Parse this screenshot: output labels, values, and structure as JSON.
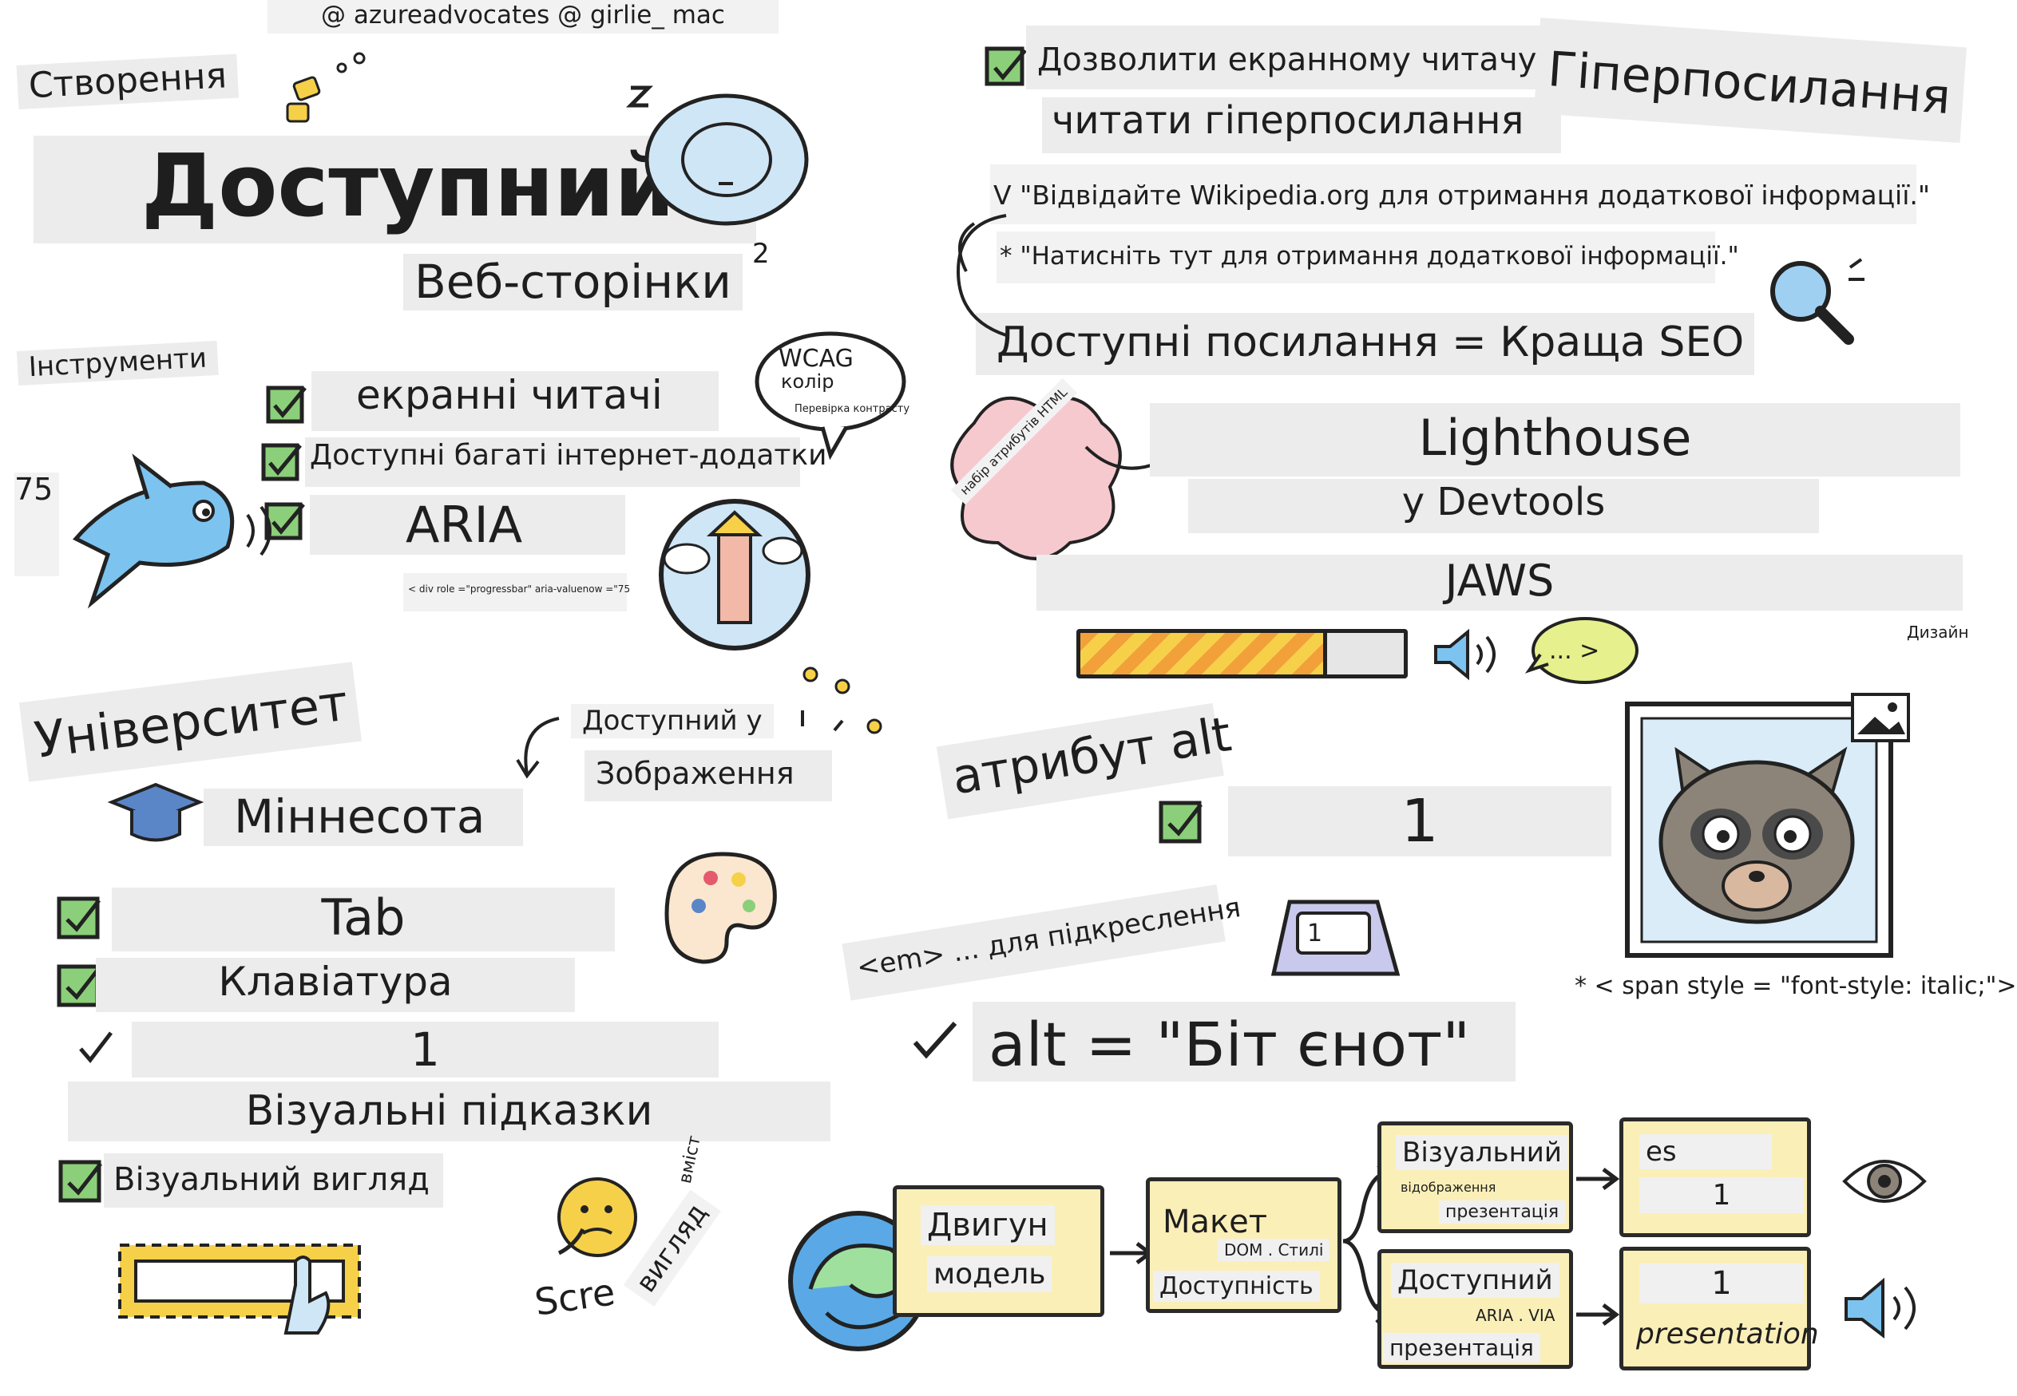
{
  "credit": "@ azureadvocates @ girlie_ mac",
  "title": {
    "line1": "Створення",
    "line2": "Доступний",
    "line3": "Веб-сторінки"
  },
  "page_number": "2",
  "tools": {
    "heading": "Інструменти",
    "items": [
      "екранні читачі",
      "Доступні багаті інтернет-додатки",
      "ARIA"
    ],
    "aria_code": "< div role =\"progressbar\" aria-valuenow =\"75",
    "side_number": "75"
  },
  "wcag": {
    "title": "WCAG",
    "line1": "колір",
    "line2": "Перевірка контрасту"
  },
  "html_attrs_cloud": "набір атрибутів HTML",
  "hyperlinks": {
    "heading": "Гіперпосилання",
    "allow_line1": "Дозволити екранному читачу",
    "allow_line2": "читати гіперпосилання",
    "good_example": "V \"Відвідайте Wikipedia.org для отримання додаткової інформації.\"",
    "bad_example": "* \"Натисніть тут для отримання додаткової інформації.\"",
    "seo": "Доступні посилання = Краща SEO"
  },
  "devtools": {
    "lighthouse": "Lighthouse",
    "in_devtools": "у Devtools",
    "jaws": "JAWS",
    "progress": 0.75,
    "speech_bubble": "... >",
    "design_label": "Дизайн"
  },
  "university": {
    "heading": "Університет",
    "name": "Міннесота",
    "accessible_in": "Доступний у",
    "images": "Зображення",
    "checklist": [
      "Tab",
      "Клавіатура",
      "1",
      "Візуальні підказки",
      "Візуальний вигляд"
    ]
  },
  "alt": {
    "heading": "атрибут alt",
    "one": "1",
    "em_note": "<em> ... для підкреслення",
    "key_label": "1",
    "span_style": "* < span style = \"font-style: italic;\">",
    "alt_text": "alt = \"Біт єнот\""
  },
  "scre_text": {
    "scre": "Scre",
    "vmist": "вміст",
    "vyglyad": "вигляд"
  },
  "pipeline": {
    "engine_line1": "Двигун",
    "engine_line2": "модель",
    "layout_title": "Макет",
    "layout_sub": "DOM . Стилі",
    "layout_bottom": "Доступність",
    "visual_title": "Візуальний",
    "visual_sub": "відображення",
    "visual_bottom": "презентація",
    "access_title": "Доступний",
    "access_sub": "ARIA . VIA",
    "access_bottom": "презентація",
    "out_top_line1": "es",
    "out_top_line2": "1",
    "out_bottom_line1": "1",
    "out_bottom_line2": "presentation"
  },
  "colors": {
    "check_green": "#8ccf7a",
    "label_gray": "#ececec",
    "box_yellow": "#fbefb8",
    "cloud_pink": "#f6c9cf",
    "progress_orange": "#f2a13a",
    "accent_blue": "#5aa9e6"
  }
}
